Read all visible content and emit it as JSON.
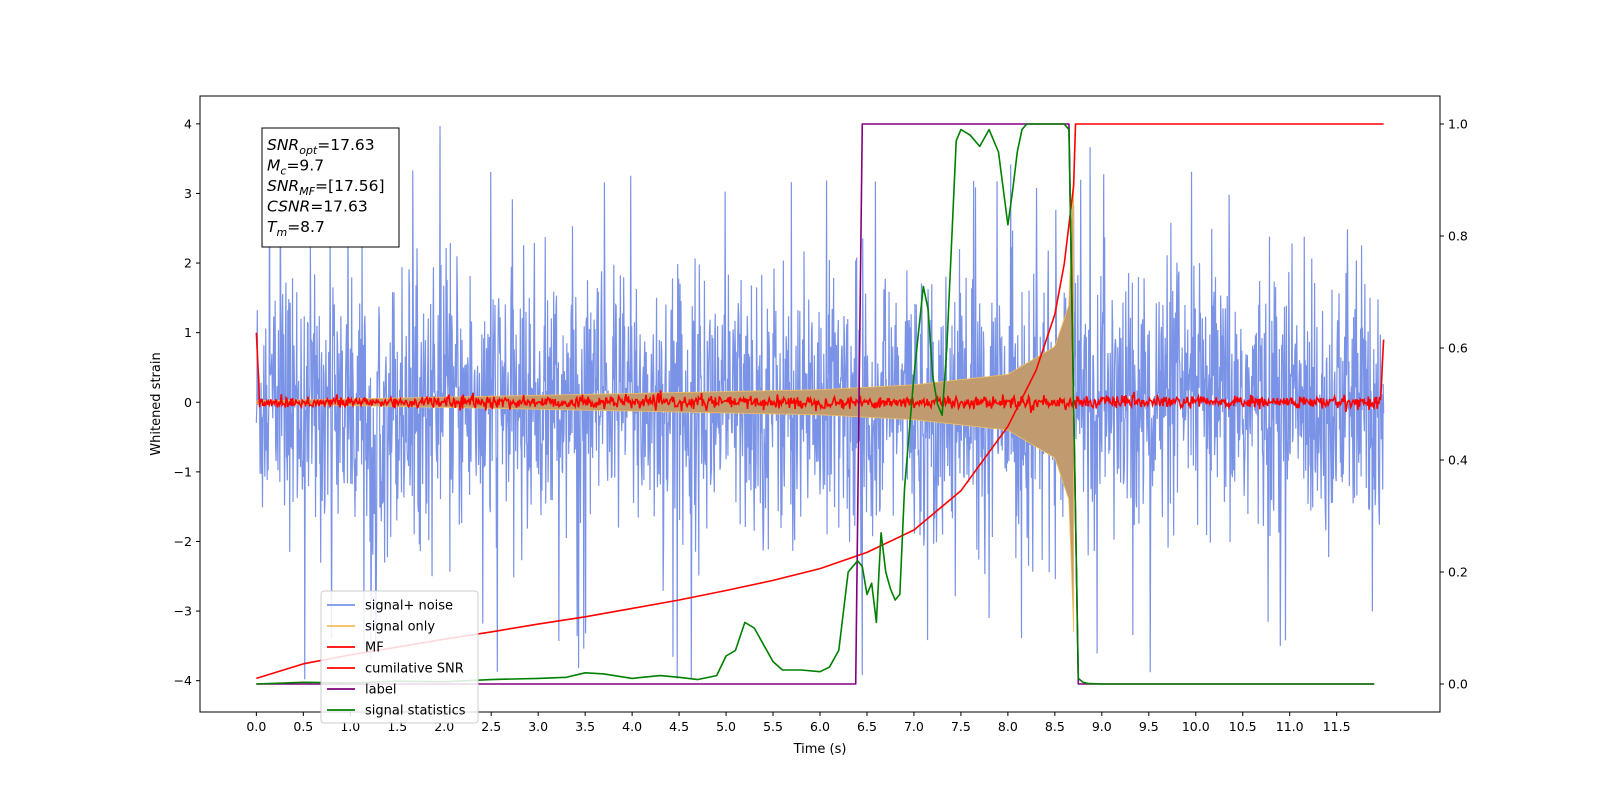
{
  "chart_data": {
    "type": "line",
    "xlabel": "Time (s)",
    "ylabel": "Whitened strain",
    "ylabel_right": "",
    "xlim": [
      -0.6,
      12.6
    ],
    "ylim": [
      -4.45,
      4.4
    ],
    "ylim_right": [
      -0.05,
      1.05
    ],
    "x_ticks": [
      0.0,
      0.5,
      1.0,
      1.5,
      2.0,
      2.5,
      3.0,
      3.5,
      4.0,
      4.5,
      5.0,
      5.5,
      6.0,
      6.5,
      7.0,
      7.5,
      8.0,
      8.5,
      9.0,
      9.5,
      10.0,
      10.5,
      11.0,
      11.5
    ],
    "y_ticks": [
      -4,
      -3,
      -2,
      -1,
      0,
      1,
      2,
      3,
      4
    ],
    "y_ticks_right": [
      0.0,
      0.2,
      0.4,
      0.6,
      0.8,
      1.0
    ],
    "grid": false,
    "legend_position": "lower-left",
    "annotation": {
      "lines": [
        {
          "main": "SNR",
          "sub": "opt",
          "rest": "=17.63"
        },
        {
          "main": "M",
          "sub": "c",
          "rest": "=9.7"
        },
        {
          "main": "SNR",
          "sub": "MF",
          "rest": "=[17.56]"
        },
        {
          "main": "CSNR",
          "sub": "",
          "rest": "=17.63"
        },
        {
          "main": "T",
          "sub": "m",
          "rest": "=8.7"
        }
      ]
    },
    "series": [
      {
        "name": "signal+ noise",
        "axis": "left",
        "color": "#7a93e6",
        "kind": "noise_band",
        "x_range": [
          0.0,
          12.0
        ],
        "approx_envelope": [
          -2.2,
          2.2
        ],
        "approx_peak_abs": 4.0
      },
      {
        "name": "signal only",
        "axis": "left",
        "color": "#f3be5e",
        "kind": "chirp",
        "x_range": [
          0.0,
          8.7
        ],
        "merger_time": 8.7,
        "envelope_points": [
          [
            0.0,
            0.02
          ],
          [
            6.0,
            0.18
          ],
          [
            7.0,
            0.25
          ],
          [
            8.0,
            0.4
          ],
          [
            8.5,
            0.8
          ],
          [
            8.65,
            1.4
          ],
          [
            8.7,
            3.3
          ]
        ]
      },
      {
        "name": "MF",
        "axis": "left",
        "color": "#ff0000",
        "kind": "matched_filter",
        "x_range": [
          0.0,
          12.0
        ],
        "baseline": 0.0,
        "approx_noise": 0.1,
        "edge_values": [
          1.0,
          0.9
        ]
      },
      {
        "name": "cumilative SNR",
        "axis": "right",
        "color": "#ff0000",
        "kind": "line",
        "x": [
          0.0,
          0.5,
          1.0,
          1.5,
          2.0,
          2.5,
          3.0,
          3.5,
          4.0,
          4.5,
          5.0,
          5.5,
          6.0,
          6.5,
          7.0,
          7.5,
          8.0,
          8.3,
          8.5,
          8.6,
          8.7,
          8.72,
          12.0
        ],
        "values": [
          0.01,
          0.036,
          0.052,
          0.066,
          0.08,
          0.093,
          0.107,
          0.12,
          0.135,
          0.15,
          0.167,
          0.185,
          0.206,
          0.235,
          0.275,
          0.345,
          0.46,
          0.56,
          0.66,
          0.75,
          0.89,
          1.0,
          1.0
        ]
      },
      {
        "name": "label",
        "axis": "right",
        "color": "#800080",
        "kind": "step",
        "x": [
          0.0,
          6.38,
          6.45,
          8.65,
          8.75,
          11.9
        ],
        "values": [
          0.0,
          0.0,
          1.0,
          1.0,
          0.0,
          0.0
        ]
      },
      {
        "name": "signal statistics",
        "axis": "right",
        "color": "#008000",
        "kind": "line",
        "x": [
          0.0,
          0.5,
          1.0,
          1.5,
          2.0,
          2.5,
          3.0,
          3.3,
          3.5,
          3.7,
          4.0,
          4.3,
          4.5,
          4.7,
          4.9,
          5.0,
          5.1,
          5.2,
          5.3,
          5.4,
          5.5,
          5.6,
          5.8,
          6.0,
          6.1,
          6.2,
          6.3,
          6.4,
          6.45,
          6.5,
          6.55,
          6.6,
          6.65,
          6.7,
          6.75,
          6.8,
          6.85,
          6.9,
          7.0,
          7.1,
          7.15,
          7.2,
          7.25,
          7.3,
          7.35,
          7.45,
          7.5,
          7.6,
          7.7,
          7.8,
          7.9,
          8.0,
          8.05,
          8.1,
          8.15,
          8.2,
          8.3,
          8.4,
          8.5,
          8.55,
          8.6,
          8.65,
          8.7,
          8.75,
          8.8,
          8.85,
          9.0,
          10.0,
          11.0,
          11.9
        ],
        "values": [
          0.0,
          0.003,
          0.002,
          0.005,
          0.004,
          0.008,
          0.01,
          0.012,
          0.02,
          0.018,
          0.01,
          0.015,
          0.012,
          0.008,
          0.015,
          0.05,
          0.06,
          0.11,
          0.1,
          0.07,
          0.04,
          0.025,
          0.025,
          0.022,
          0.03,
          0.06,
          0.2,
          0.22,
          0.21,
          0.16,
          0.18,
          0.11,
          0.27,
          0.2,
          0.17,
          0.15,
          0.16,
          0.35,
          0.55,
          0.71,
          0.67,
          0.55,
          0.5,
          0.48,
          0.6,
          0.97,
          0.99,
          0.98,
          0.96,
          0.99,
          0.95,
          0.82,
          0.88,
          0.95,
          0.99,
          1.0,
          1.0,
          1.0,
          1.0,
          1.0,
          1.0,
          0.99,
          0.5,
          0.01,
          0.003,
          0.001,
          0.0,
          0.0,
          0.0,
          0.0
        ]
      }
    ]
  }
}
